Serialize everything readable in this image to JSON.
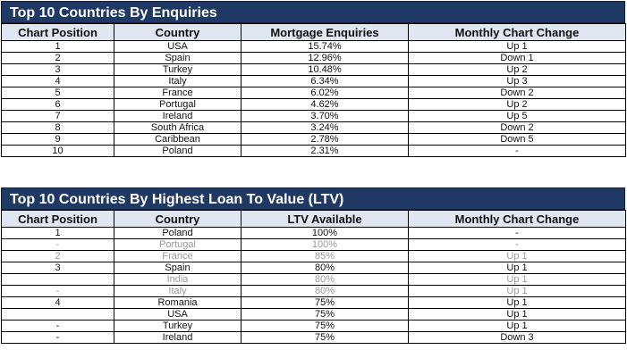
{
  "enquiries": {
    "title": "Top 10 Countries By Enquiries",
    "headers": [
      "Chart Position",
      "Country",
      "Mortgage Enquiries",
      "Monthly Chart Change"
    ],
    "rows": [
      [
        "1",
        "USA",
        "15.74%",
        "Up 1"
      ],
      [
        "2",
        "Spain",
        "12.96%",
        "Down 1"
      ],
      [
        "3",
        "Turkey",
        "10.48%",
        "Up 2"
      ],
      [
        "4",
        "Italy",
        "6.34%",
        "Up 3"
      ],
      [
        "5",
        "France",
        "6.02%",
        "Down 2"
      ],
      [
        "6",
        "Portugal",
        "4.62%",
        "Up 2"
      ],
      [
        "7",
        "Ireland",
        "3.70%",
        "Up 5"
      ],
      [
        "8",
        "South Africa",
        "3.24%",
        "Down 2"
      ],
      [
        "9",
        "Caribbean",
        "2.78%",
        "Down 5"
      ],
      [
        "10",
        "Poland",
        "2.31%",
        "-"
      ]
    ]
  },
  "ltv": {
    "title": "Top 10 Countries By Highest Loan To Value (LTV)",
    "headers": [
      "Chart Position",
      "Country",
      "LTV Available",
      "Monthly Chart Change"
    ],
    "rows": [
      [
        "1",
        "Poland",
        "100%",
        "-"
      ],
      [
        "-",
        "Portugal",
        "100%",
        "-"
      ],
      [
        "2",
        "France",
        "85%",
        "Up 1"
      ],
      [
        "3",
        "Spain",
        "80%",
        "Up 1"
      ],
      [
        "",
        "India",
        "80%",
        "Up 1"
      ],
      [
        "-",
        "Italy",
        "80%",
        "Up 1"
      ],
      [
        "4",
        "Romania",
        "75%",
        "Up 1"
      ],
      [
        "",
        "USA",
        "75%",
        "Up 1"
      ],
      [
        "-",
        "Turkey",
        "75%",
        "Up 1"
      ],
      [
        "-",
        "Ireland",
        "75%",
        "Down 3"
      ]
    ],
    "faded_rows": [
      1,
      2,
      4,
      5
    ]
  }
}
